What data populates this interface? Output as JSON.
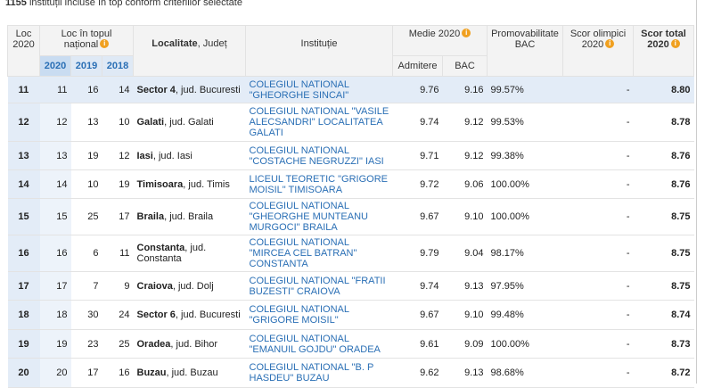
{
  "summary": {
    "count": "1155",
    "text": "instituții incluse în top conform criteriilor selectate"
  },
  "table": {
    "headers": {
      "loc": "Loc 2020",
      "national": "Loc în topul național",
      "years": [
        "2020",
        "2019",
        "2018"
      ],
      "localitate": "Localitate",
      "judet": ", Județ",
      "institutie": "Instituție",
      "medie": "Medie 2020",
      "medie_sub": [
        "Admitere",
        "BAC"
      ],
      "promovabilitate": "Promovabilitate BAC",
      "olimpici": "Scor olimpici 2020",
      "total": "Scor total 2020"
    },
    "rows": [
      [
        "11",
        "11",
        "16",
        "14",
        "Sector 4",
        ", jud. Bucuresti",
        "COLEGIUL NATIONAL \"GHEORGHE SINCAI\"",
        "9.76",
        "9.16",
        "99.57%",
        "-",
        "8.80"
      ],
      [
        "12",
        "12",
        "13",
        "10",
        "Galati",
        ", jud. Galati",
        "COLEGIUL NATIONAL \"VASILE ALECSANDRI\" LOCALITATEA GALATI",
        "9.74",
        "9.12",
        "99.53%",
        "-",
        "8.78"
      ],
      [
        "13",
        "13",
        "19",
        "12",
        "Iasi",
        ", jud. Iasi",
        "COLEGIUL NATIONAL \"COSTACHE NEGRUZZI\" IASI",
        "9.71",
        "9.12",
        "99.38%",
        "-",
        "8.76"
      ],
      [
        "14",
        "14",
        "10",
        "19",
        "Timisoara",
        ", jud. Timis",
        "LICEUL TEORETIC \"GRIGORE MOISIL\" TIMISOARA",
        "9.72",
        "9.06",
        "100.00%",
        "-",
        "8.76"
      ],
      [
        "15",
        "15",
        "25",
        "17",
        "Braila",
        ", jud. Braila",
        "COLEGIUL NATIONAL \"GHEORGHE MUNTEANU MURGOCI\" BRAILA",
        "9.67",
        "9.10",
        "100.00%",
        "-",
        "8.75"
      ],
      [
        "16",
        "16",
        "6",
        "11",
        "Constanta",
        ", jud. Constanta",
        "COLEGIUL NATIONAL \"MIRCEA CEL BATRAN\" CONSTANTA",
        "9.79",
        "9.04",
        "98.17%",
        "-",
        "8.75"
      ],
      [
        "17",
        "17",
        "7",
        "9",
        "Craiova",
        ", jud. Dolj",
        "COLEGIUL NATIONAL \"FRATII BUZESTI\" CRAIOVA",
        "9.74",
        "9.13",
        "97.95%",
        "-",
        "8.75"
      ],
      [
        "18",
        "18",
        "30",
        "24",
        "Sector 6",
        ", jud. Bucuresti",
        "COLEGIUL NATIONAL \"GRIGORE MOISIL\"",
        "9.67",
        "9.10",
        "99.48%",
        "-",
        "8.74"
      ],
      [
        "19",
        "19",
        "23",
        "25",
        "Oradea",
        ", jud. Bihor",
        "COLEGIUL NATIONAL \"EMANUIL GOJDU\" ORADEA",
        "9.61",
        "9.09",
        "100.00%",
        "-",
        "8.73"
      ],
      [
        "20",
        "20",
        "17",
        "16",
        "Buzau",
        ", jud. Buzau",
        "COLEGIUL NATIONAL \"B. P HASDEU\" BUZAU",
        "9.62",
        "9.13",
        "98.68%",
        "-",
        "8.72"
      ]
    ]
  }
}
